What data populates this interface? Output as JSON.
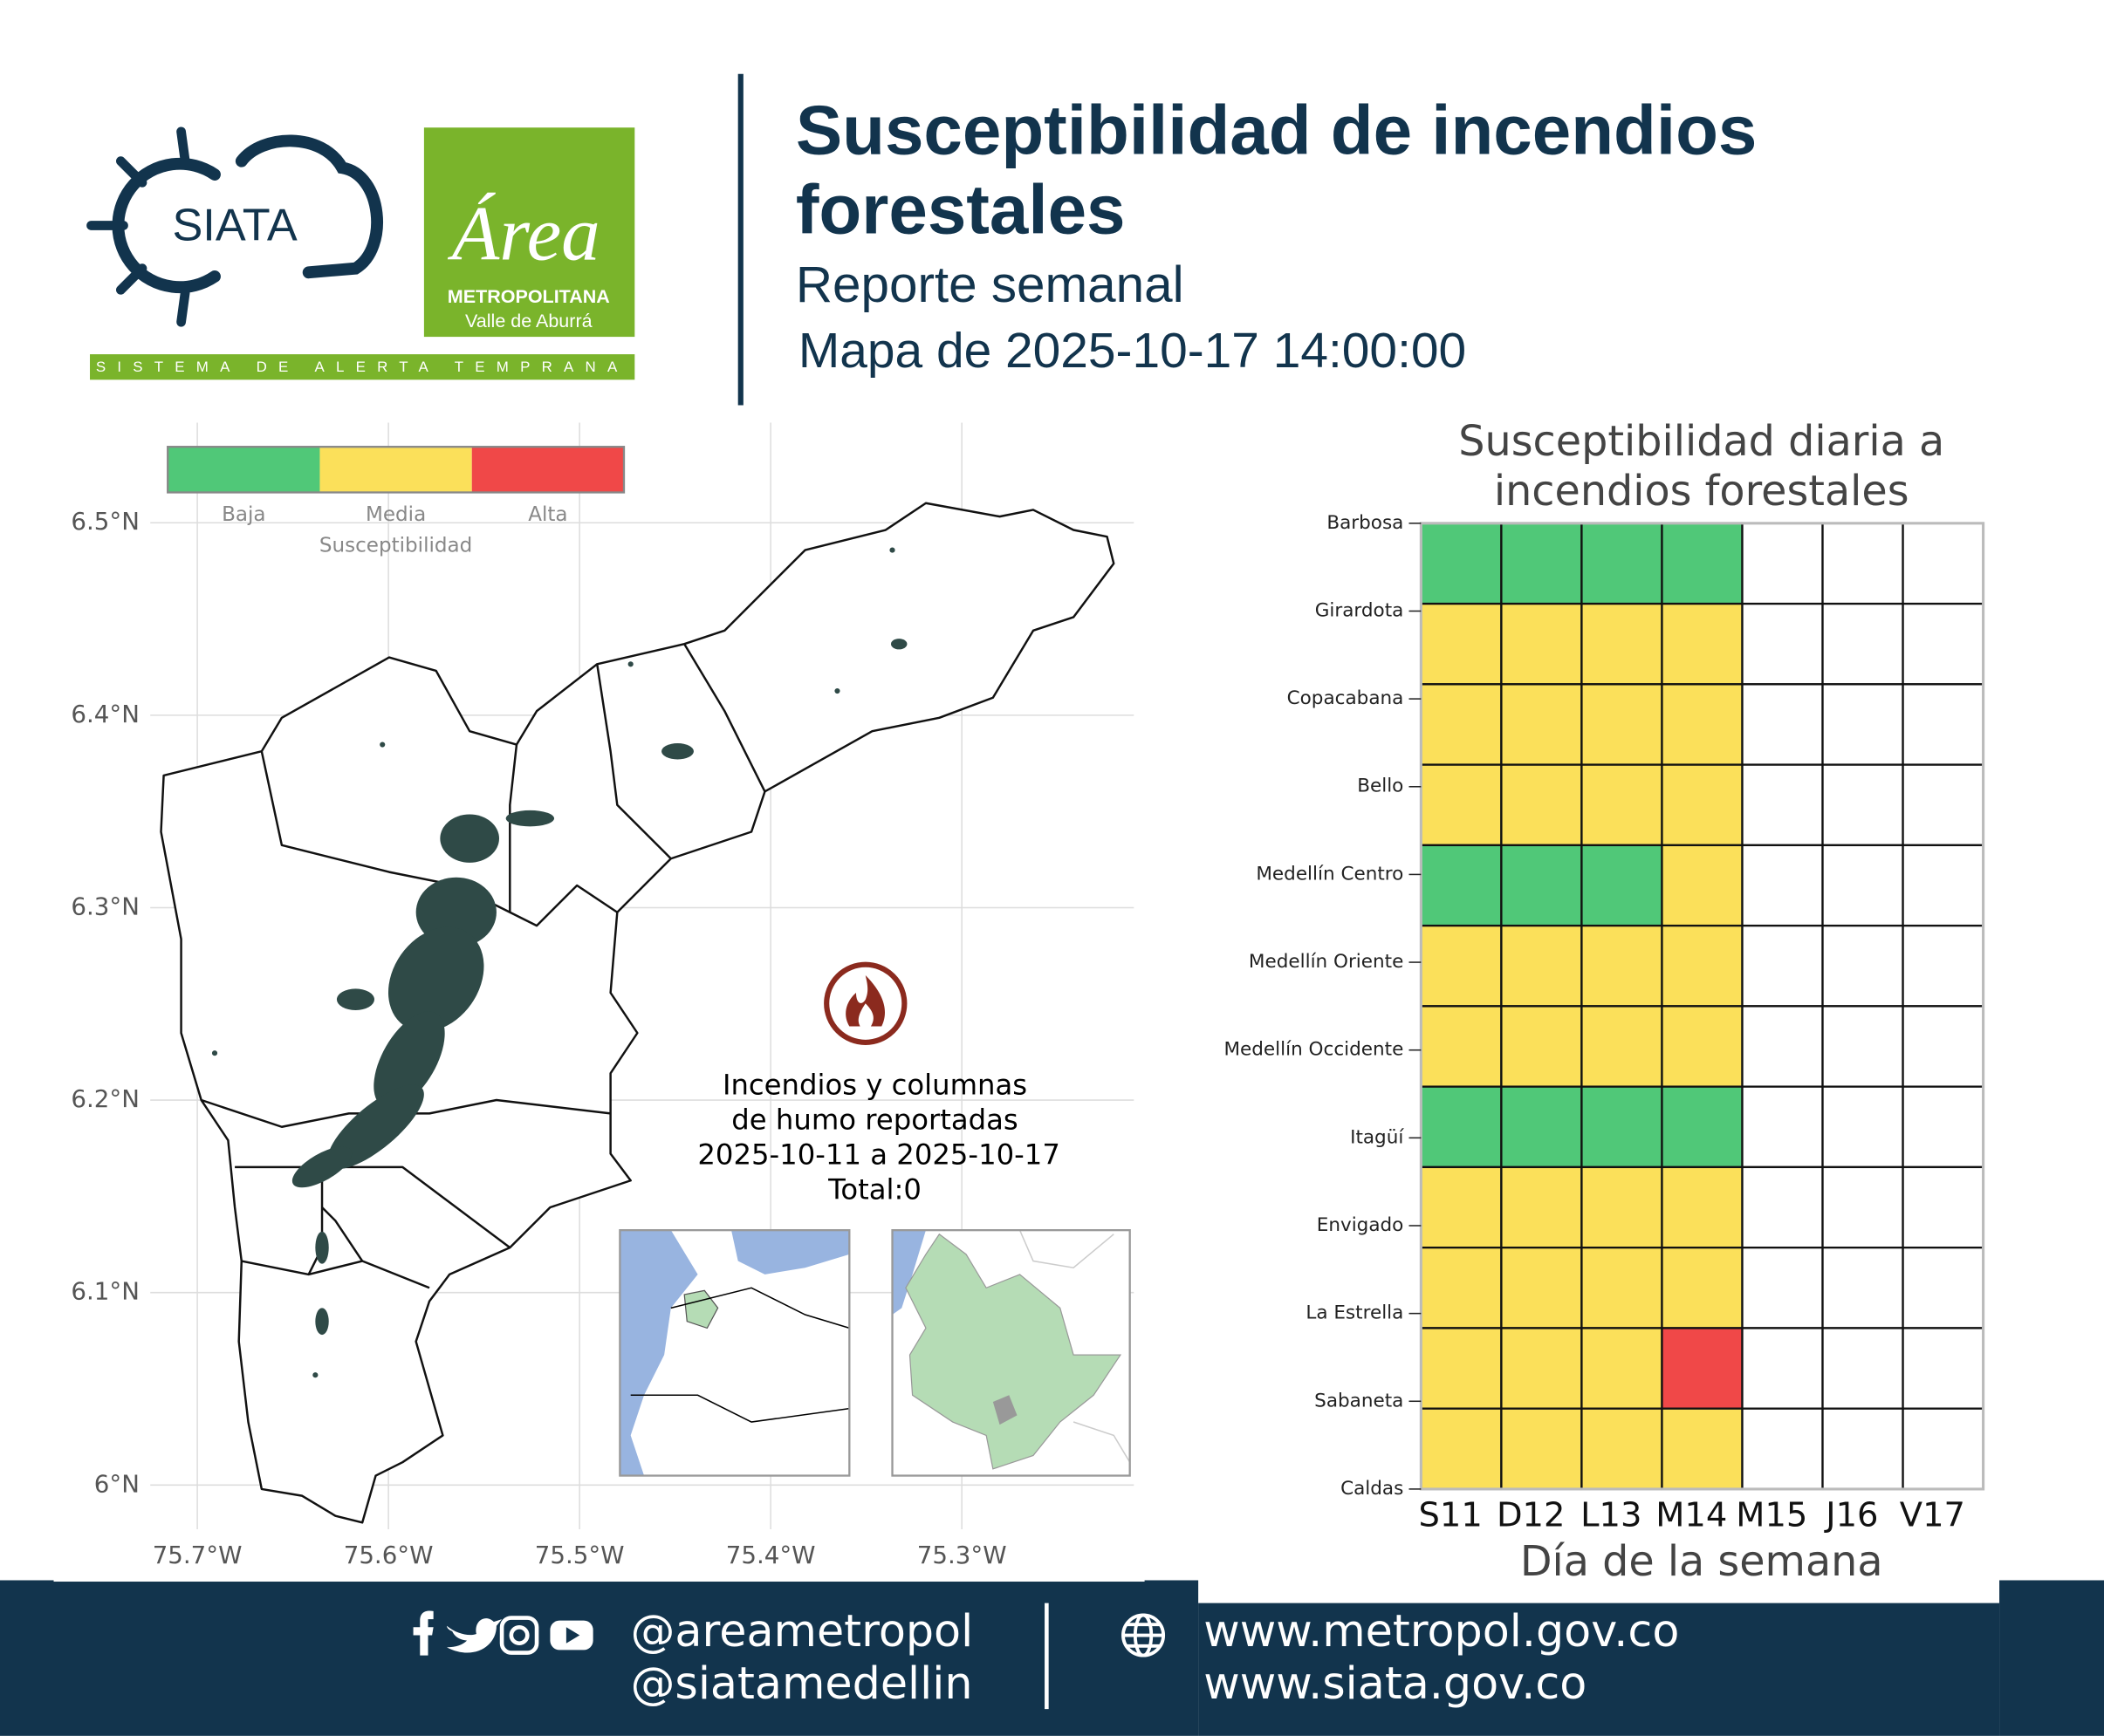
{
  "header": {
    "logo_siata": "SIATA",
    "logo_area_title": "Área",
    "logo_area_line1": "METROPOLITANA",
    "logo_area_line2": "Valle de Aburrá",
    "logo_tagline": "SISTEMA DE ALERTA TEMPRANA",
    "title": [
      "Susceptibilidad de incendios",
      "forestales"
    ],
    "subtitle": "Reporte semanal",
    "date": "Mapa de 2025-10-17 14:00:00"
  },
  "map": {
    "legend": {
      "title": "Susceptibilidad",
      "labels": [
        "Baja",
        "Media",
        "Alta"
      ],
      "colors": [
        "#50c878",
        "#fbe05a",
        "#f04848"
      ]
    },
    "xlim": [
      -75.7246,
      -75.21
    ],
    "ylim": [
      5.977,
      6.552
    ],
    "grid": true,
    "xticks": [
      {
        "value": -75.7,
        "label": "75.7°W"
      },
      {
        "value": -75.6,
        "label": "75.6°W"
      },
      {
        "value": -75.5,
        "label": "75.5°W"
      },
      {
        "value": -75.4,
        "label": "75.4°W"
      },
      {
        "value": -75.3,
        "label": "75.3°W"
      }
    ],
    "yticks": [
      {
        "value": 6.5,
        "label": "6.5°N"
      },
      {
        "value": 6.4,
        "label": "6.4°N"
      },
      {
        "value": 6.3,
        "label": "6.3°N"
      },
      {
        "value": 6.2,
        "label": "6.2°N"
      },
      {
        "value": 6.1,
        "label": "6.1°N"
      },
      {
        "value": 6.0,
        "label": "6°N"
      }
    ],
    "annotation": [
      "Incendios y columnas",
      "de humo reportadas",
      "2025-10-11 a 2025-10-17",
      "Total:0"
    ]
  },
  "chart_data": {
    "type": "heatmap",
    "title": [
      "Susceptibilidad diaria a",
      "incendios forestales"
    ],
    "x_label": "Día de la semana",
    "categories": [
      "S11",
      "D12",
      "L13",
      "M14",
      "M15",
      "J16",
      "V17"
    ],
    "rows": [
      "Barbosa",
      "Girardota",
      "Copacabana",
      "Bello",
      "Medellín Centro",
      "Medellín Oriente",
      "Medellín Occidente",
      "Itagüí",
      "Envigado",
      "La Estrella",
      "Sabaneta",
      "Caldas"
    ],
    "values": [
      [
        "Baja",
        "Baja",
        "Baja",
        "Baja",
        null,
        null,
        null
      ],
      [
        "Media",
        "Media",
        "Media",
        "Media",
        null,
        null,
        null
      ],
      [
        "Media",
        "Media",
        "Media",
        "Media",
        null,
        null,
        null
      ],
      [
        "Media",
        "Media",
        "Media",
        "Media",
        null,
        null,
        null
      ],
      [
        "Baja",
        "Baja",
        "Baja",
        "Media",
        null,
        null,
        null
      ],
      [
        "Media",
        "Media",
        "Media",
        "Media",
        null,
        null,
        null
      ],
      [
        "Media",
        "Media",
        "Media",
        "Media",
        null,
        null,
        null
      ],
      [
        "Baja",
        "Baja",
        "Baja",
        "Baja",
        null,
        null,
        null
      ],
      [
        "Media",
        "Media",
        "Media",
        "Media",
        null,
        null,
        null
      ],
      [
        "Media",
        "Media",
        "Media",
        "Media",
        null,
        null,
        null
      ],
      [
        "Media",
        "Media",
        "Media",
        "Alta",
        null,
        null,
        null
      ],
      [
        "Media",
        "Media",
        "Media",
        "Media",
        null,
        null,
        null
      ]
    ]
  },
  "footer": {
    "handles": [
      "@areametropol",
      "@siatamedellin"
    ],
    "urls": [
      "www.metropol.gov.co",
      "www.siata.gov.co"
    ]
  }
}
